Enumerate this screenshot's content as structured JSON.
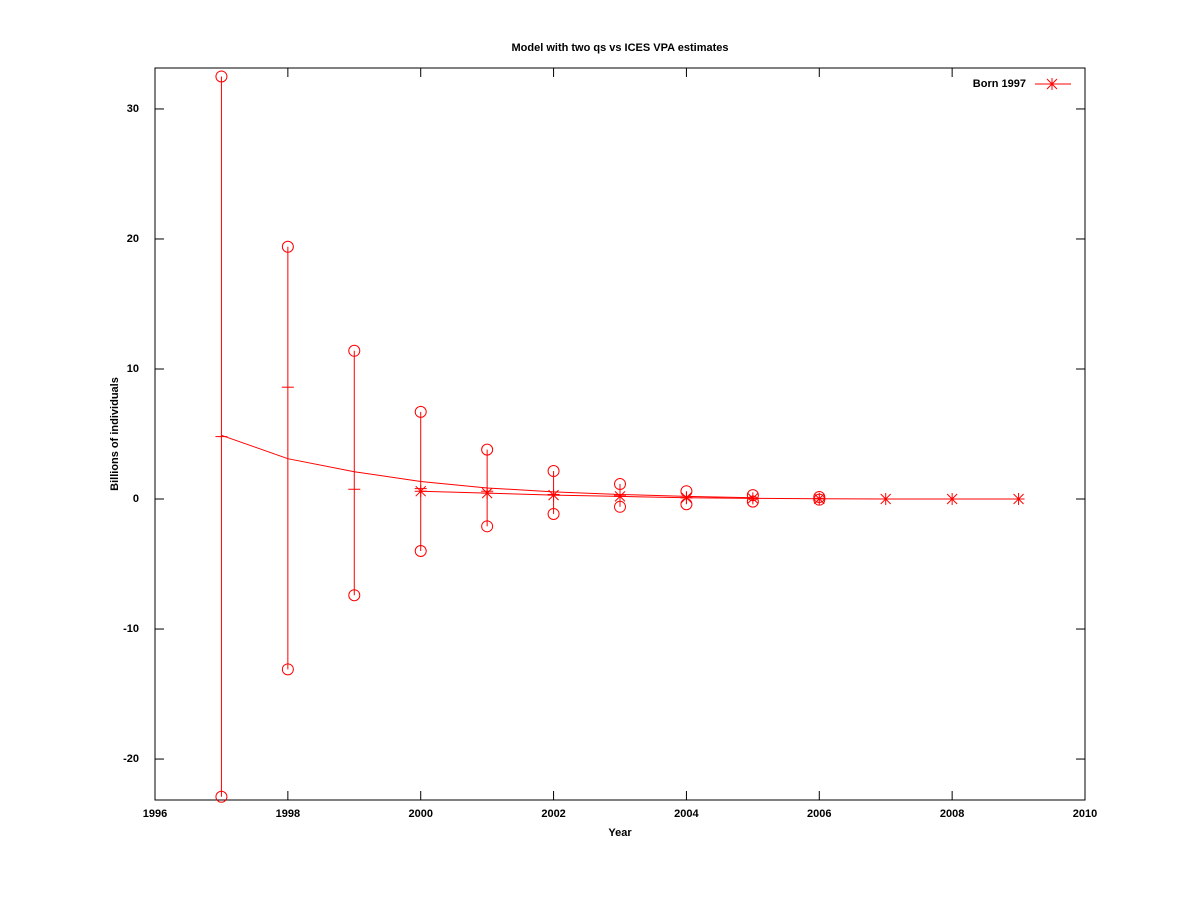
{
  "chart_data": {
    "type": "line",
    "title": "Model with two qs vs ICES VPA estimates",
    "xlabel": "Year",
    "ylabel": "Billions of individuals",
    "xlim": [
      1996,
      2010
    ],
    "xticks": [
      1996,
      1998,
      2000,
      2002,
      2004,
      2006,
      2008,
      2010
    ],
    "ylim": [
      -23.15,
      33.15
    ],
    "yticks": [
      -20,
      -10,
      0,
      10,
      20,
      30
    ],
    "legend": "top-right",
    "series": [
      {
        "kind": "line",
        "color": "#ff0000",
        "x": [
          1997,
          1998,
          1999,
          2000,
          2001,
          2002,
          2003,
          2004,
          2005
        ],
        "values": [
          4.9,
          3.1,
          2.1,
          1.35,
          0.85,
          0.55,
          0.35,
          0.2,
          0.1
        ]
      },
      {
        "kind": "linespoints",
        "name": "Born 1997",
        "color": "#ff0000",
        "x": [
          2000,
          2001,
          2002,
          2003,
          2004,
          2005,
          2006,
          2007,
          2008,
          2009
        ],
        "values": [
          0.6,
          0.45,
          0.3,
          0.2,
          0.1,
          0.05,
          0.02,
          0,
          0,
          0
        ]
      },
      {
        "kind": "errorbar",
        "color": "#ff0000",
        "x": [
          1997,
          1998,
          1999,
          2000,
          2001,
          2002,
          2003,
          2004,
          2005,
          2006
        ],
        "values": [
          4.8,
          8.6,
          0.75,
          0.8,
          0.6,
          0.35,
          0.3,
          0.1,
          0.05,
          0.05
        ],
        "lower": [
          -22.9,
          -13.1,
          -7.4,
          -4.0,
          -2.1,
          -1.15,
          -0.6,
          -0.4,
          -0.2,
          -0.05
        ],
        "upper": [
          32.5,
          19.4,
          11.4,
          6.7,
          3.8,
          2.15,
          1.15,
          0.6,
          0.3,
          0.15
        ]
      }
    ]
  }
}
